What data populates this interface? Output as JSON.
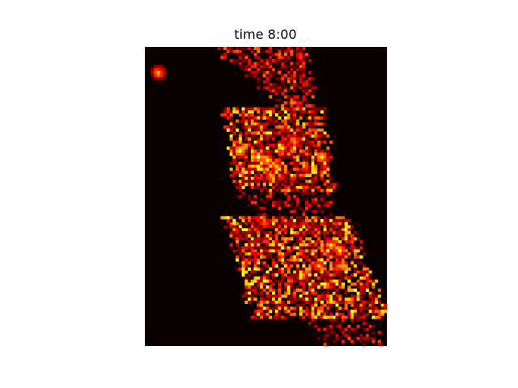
{
  "chart_data": {
    "type": "heatmap",
    "title": "time 8:00",
    "xlabel": "",
    "ylabel": "",
    "axes_visible": false,
    "colormap": "hot",
    "background_value": 0,
    "grid": {
      "cols": 80,
      "rows": 99
    },
    "regions": [
      {
        "name": "north-strip",
        "rows": [
          0,
          20
        ],
        "left_edge": [
          22,
          46
        ],
        "right_edge": [
          52,
          56
        ],
        "density": 0.55,
        "intensity": [
          0.1,
          0.55
        ]
      },
      {
        "name": "north-body",
        "rows": [
          20,
          48
        ],
        "left_edge": [
          26,
          30
        ],
        "right_edge": [
          58,
          62
        ],
        "density": 0.75,
        "intensity": [
          0.15,
          0.75
        ]
      },
      {
        "name": "middle-gap",
        "rows": [
          48,
          60
        ],
        "left_edge": [
          30,
          40
        ],
        "right_edge": [
          60,
          63
        ],
        "density": 0.35,
        "intensity": [
          0.08,
          0.45
        ]
      },
      {
        "name": "south-body",
        "rows": [
          56,
          90
        ],
        "left_edge": [
          26,
          36
        ],
        "right_edge": [
          66,
          80
        ],
        "density": 0.7,
        "intensity": [
          0.15,
          0.8
        ]
      },
      {
        "name": "south-tip",
        "rows": [
          88,
          99
        ],
        "left_edge": [
          52,
          60
        ],
        "right_edge": [
          72,
          80
        ],
        "density": 0.4,
        "intensity": [
          0.1,
          0.5
        ]
      }
    ],
    "hotspots": [
      {
        "row": 34,
        "col": 31,
        "value": 1.0
      },
      {
        "row": 36,
        "col": 37,
        "value": 0.95
      },
      {
        "row": 37,
        "col": 40,
        "value": 0.9
      },
      {
        "row": 39,
        "col": 43,
        "value": 0.85
      },
      {
        "row": 33,
        "col": 45,
        "value": 0.8
      },
      {
        "row": 36,
        "col": 58,
        "value": 0.95
      },
      {
        "row": 31,
        "col": 49,
        "value": 0.75
      },
      {
        "row": 42,
        "col": 41,
        "value": 0.8
      },
      {
        "row": 65,
        "col": 61,
        "value": 0.9
      },
      {
        "row": 67,
        "col": 64,
        "value": 0.85
      },
      {
        "row": 72,
        "col": 57,
        "value": 0.8
      },
      {
        "row": 72,
        "col": 64,
        "value": 0.75
      },
      {
        "row": 75,
        "col": 52,
        "value": 0.7
      },
      {
        "row": 8,
        "col": 4,
        "value": 0.85
      }
    ]
  }
}
